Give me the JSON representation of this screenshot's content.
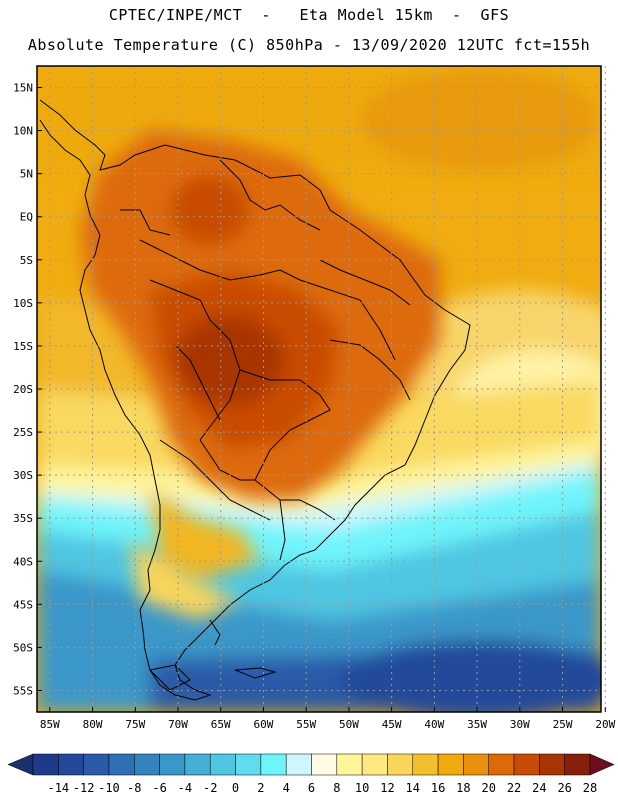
{
  "header": {
    "line1": "CPTEC/INPE/MCT  -   Eta Model 15km  -  GFS",
    "line2": "Absolute Temperature (C) 850hPa - 13/09/2020 12UTC fct=155h"
  },
  "map": {
    "lat_labels": [
      "15N",
      "10N",
      "5N",
      "EQ",
      "5S",
      "10S",
      "15S",
      "20S",
      "25S",
      "30S",
      "35S",
      "40S",
      "45S",
      "50S",
      "55S"
    ],
    "lon_labels": [
      "85W",
      "80W",
      "75W",
      "70W",
      "65W",
      "60W",
      "55W",
      "50W",
      "45W",
      "40W",
      "35W",
      "30W",
      "25W",
      "20W"
    ],
    "lat_range": [
      17.5,
      -57.5
    ],
    "lon_range": [
      -86.5,
      -20.5
    ]
  },
  "colorbar": {
    "labels": [
      "-14",
      "-12",
      "-10",
      "-8",
      "-6",
      "-4",
      "-2",
      "0",
      "2",
      "4",
      "6",
      "8",
      "10",
      "12",
      "14",
      "16",
      "18",
      "20",
      "22",
      "24",
      "26",
      "28"
    ],
    "colors": [
      "#1f3a8a",
      "#23489a",
      "#2b5aa8",
      "#2f6fb6",
      "#3482be",
      "#3b97c9",
      "#45aed6",
      "#4fc6e2",
      "#5fdcee",
      "#6ff4fb",
      "#cff6fb",
      "#fffbe4",
      "#fff59b",
      "#fde980",
      "#f9d55a",
      "#f4bf2e",
      "#eeaa0f",
      "#e9900e",
      "#dd6a08",
      "#c94c06",
      "#a83506",
      "#86200c"
    ],
    "left_arrow_color": "#1c2f6e",
    "right_arrow_color": "#6e0d1e"
  }
}
